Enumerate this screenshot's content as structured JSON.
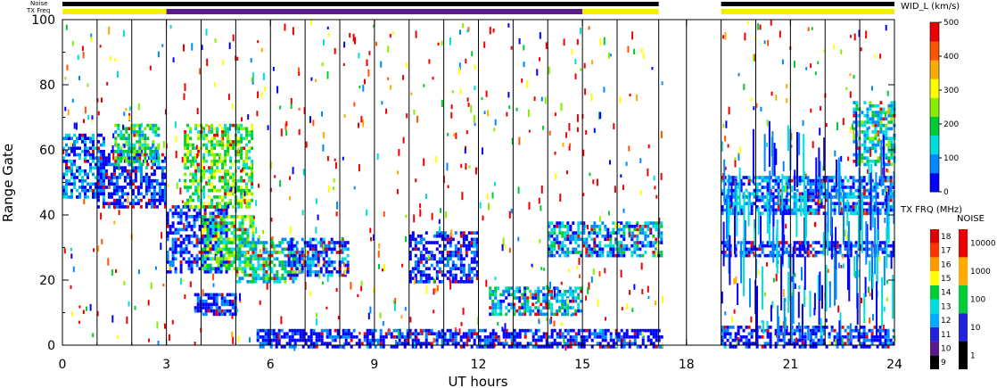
{
  "chart_data": {
    "type": "heatmap",
    "xlabel": "UT hours",
    "ylabel": "Range Gate",
    "xlim": [
      0,
      24
    ],
    "ylim": [
      0,
      100
    ],
    "x_ticks": [
      0,
      3,
      6,
      9,
      12,
      15,
      18,
      21,
      24
    ],
    "y_ticks": [
      0,
      20,
      40,
      60,
      80,
      100
    ],
    "data_gap": [
      17.3,
      19.0
    ],
    "scan_boundaries": [
      1,
      2,
      3,
      4,
      5,
      6,
      7,
      8,
      9,
      10,
      11,
      12,
      13,
      14,
      15,
      16,
      17.2,
      18,
      19,
      20,
      21,
      22,
      23
    ],
    "noise_bar": {
      "label": "Noise",
      "segments": [
        {
          "start": 0,
          "end": 17.2,
          "color": "#000000"
        },
        {
          "start": 19,
          "end": 24,
          "color": "#000000"
        }
      ]
    },
    "freq_bar": {
      "label": "TX Freq",
      "segments": [
        {
          "start": 0,
          "end": 3,
          "color": "#f0f000"
        },
        {
          "start": 3,
          "end": 15,
          "color": "#5a1a8c"
        },
        {
          "start": 15,
          "end": 17.2,
          "color": "#f0f000"
        },
        {
          "start": 19,
          "end": 24,
          "color": "#f0f000"
        }
      ]
    },
    "velocity_scale": {
      "title": "WID_L (km/s)",
      "ticks": [
        0,
        100,
        200,
        300,
        400,
        500
      ],
      "range": [
        0,
        500
      ],
      "colors": [
        "#0000ff",
        "#0088ff",
        "#00dddd",
        "#00cc33",
        "#88ee00",
        "#ffff00",
        "#ffaa00",
        "#ff5500",
        "#ee0000"
      ]
    },
    "freq_scale": {
      "title": "TX FRQ (MHz)",
      "ticks": [
        "9",
        "10",
        "11",
        "12",
        "13",
        "14",
        "15",
        "16",
        "17",
        "18"
      ],
      "colors": [
        "#000000",
        "#5a1a8c",
        "#2222dd",
        "#00aaff",
        "#00dddd",
        "#00cc33",
        "#ffff00",
        "#ff9900",
        "#ff3300",
        "#dd0000"
      ]
    },
    "noise_scale": {
      "title": "NOISE",
      "ticks": [
        "1",
        "10",
        "100",
        "1000",
        "10000"
      ],
      "colors": [
        "#000000",
        "#2222dd",
        "#00cc33",
        "#ffaa00",
        "#ee0000"
      ]
    },
    "echo_regions": [
      {
        "x": [
          0.0,
          1.2
        ],
        "y": [
          45,
          65
        ],
        "level": 0.15
      },
      {
        "x": [
          1.0,
          3.0
        ],
        "y": [
          42,
          60
        ],
        "level": 0.05
      },
      {
        "x": [
          1.5,
          2.8
        ],
        "y": [
          55,
          68
        ],
        "level": 0.35
      },
      {
        "x": [
          3.0,
          4.7
        ],
        "y": [
          23,
          43
        ],
        "level": 0.05
      },
      {
        "x": [
          4.0,
          5.5
        ],
        "y": [
          24,
          40
        ],
        "level": 0.4
      },
      {
        "x": [
          5.0,
          6.7
        ],
        "y": [
          20,
          33
        ],
        "level": 0.3
      },
      {
        "x": [
          6.5,
          8.2
        ],
        "y": [
          22,
          33
        ],
        "level": 0.1
      },
      {
        "x": [
          3.8,
          5.0
        ],
        "y": [
          10,
          16
        ],
        "level": 0.05
      },
      {
        "x": [
          3.5,
          5.5
        ],
        "y": [
          42,
          68
        ],
        "level": 0.45
      },
      {
        "x": [
          10.0,
          12.0
        ],
        "y": [
          20,
          35
        ],
        "level": 0.05
      },
      {
        "x": [
          12.3,
          15.0
        ],
        "y": [
          10,
          18
        ],
        "level": 0.25
      },
      {
        "x": [
          14.0,
          17.3
        ],
        "y": [
          28,
          38
        ],
        "level": 0.2
      },
      {
        "x": [
          5.6,
          17.3
        ],
        "y": [
          0,
          5
        ],
        "level": 0.05
      },
      {
        "x": [
          19.0,
          24.0
        ],
        "y": [
          0,
          6
        ],
        "level": 0.05
      },
      {
        "x": [
          19.0,
          24.0
        ],
        "y": [
          28,
          32
        ],
        "level": 0.05
      },
      {
        "x": [
          19.0,
          24.0
        ],
        "y": [
          40,
          52
        ],
        "level": 0.15
      },
      {
        "x": [
          22.8,
          24.0
        ],
        "y": [
          55,
          75
        ],
        "level": 0.3
      }
    ]
  }
}
